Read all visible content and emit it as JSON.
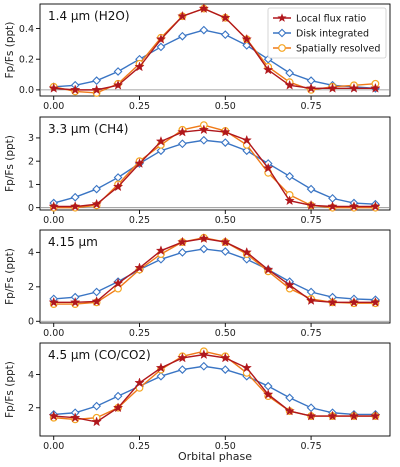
{
  "colors": {
    "local": "#b0171c",
    "disk": "#3a75c4",
    "spatial": "#f5a623",
    "spatial_line": "#f07a18",
    "axis": "#000000"
  },
  "chart_data": [
    {
      "type": "line",
      "title": "1.4 μm (H2O)",
      "ylabel": "Fp/Fs (ppt)",
      "xlabel": "",
      "xlim": [
        -0.04,
        0.98
      ],
      "ylim": [
        -0.04,
        0.56
      ],
      "xticks": [
        "0.00",
        "0.25",
        "0.50",
        "0.75"
      ],
      "xtick_values": [
        0,
        0.25,
        0.5,
        0.75
      ],
      "yticks": [
        "0.0",
        "0.2",
        "0.4"
      ],
      "ytick_values": [
        0,
        0.2,
        0.4
      ],
      "x": [
        0,
        0.0625,
        0.125,
        0.1875,
        0.25,
        0.3125,
        0.375,
        0.4375,
        0.5,
        0.5625,
        0.625,
        0.6875,
        0.75,
        0.8125,
        0.875,
        0.9375
      ],
      "series": [
        {
          "name": "Local flux ratio",
          "key": "local",
          "values": [
            0.01,
            0.0,
            0.0,
            0.03,
            0.15,
            0.33,
            0.48,
            0.53,
            0.47,
            0.33,
            0.13,
            0.03,
            0.01,
            0.01,
            0.01,
            0.01
          ]
        },
        {
          "name": "Disk integrated",
          "key": "disk",
          "values": [
            0.02,
            0.03,
            0.06,
            0.12,
            0.2,
            0.28,
            0.35,
            0.39,
            0.36,
            0.29,
            0.2,
            0.11,
            0.06,
            0.03,
            0.02,
            0.01
          ]
        },
        {
          "name": "Spatially resolved",
          "key": "spatial",
          "values": [
            0.02,
            -0.01,
            -0.02,
            0.04,
            0.17,
            0.34,
            0.48,
            0.53,
            0.47,
            0.33,
            0.15,
            0.05,
            0.0,
            0.02,
            0.03,
            0.04
          ]
        }
      ],
      "legend": "top-right"
    },
    {
      "type": "line",
      "title": "3.3 μm (CH4)",
      "ylabel": "Fp/Fs (ppt)",
      "xlabel": "",
      "xlim": [
        -0.04,
        0.98
      ],
      "ylim": [
        -0.1,
        3.9
      ],
      "xticks": [
        "0.00",
        "0.25",
        "0.50",
        "0.75"
      ],
      "xtick_values": [
        0,
        0.25,
        0.5,
        0.75
      ],
      "yticks": [
        "0",
        "1",
        "2",
        "3"
      ],
      "ytick_values": [
        0,
        1,
        2,
        3
      ],
      "x": [
        0,
        0.0625,
        0.125,
        0.1875,
        0.25,
        0.3125,
        0.375,
        0.4375,
        0.5,
        0.5625,
        0.625,
        0.6875,
        0.75,
        0.8125,
        0.875,
        0.9375
      ],
      "series": [
        {
          "name": "Local flux ratio",
          "key": "local",
          "values": [
            0.05,
            0.05,
            0.15,
            0.9,
            1.9,
            2.85,
            3.25,
            3.35,
            3.25,
            2.9,
            1.7,
            0.3,
            0.1,
            0.05,
            0.05,
            0.05
          ]
        },
        {
          "name": "Disk integrated",
          "key": "disk",
          "values": [
            0.2,
            0.45,
            0.8,
            1.3,
            1.9,
            2.45,
            2.75,
            2.9,
            2.8,
            2.45,
            1.9,
            1.35,
            0.8,
            0.4,
            0.2,
            0.15
          ]
        },
        {
          "name": "Spatially resolved",
          "key": "spatial",
          "values": [
            0.0,
            0.0,
            0.1,
            1.0,
            2.0,
            2.7,
            3.35,
            3.55,
            3.3,
            2.7,
            1.5,
            0.55,
            0.1,
            0.0,
            0.0,
            0.0
          ]
        }
      ]
    },
    {
      "type": "line",
      "title": "4.15 μm",
      "ylabel": "Fp/Fs (ppt)",
      "xlabel": "",
      "xlim": [
        -0.04,
        0.98
      ],
      "ylim": [
        -0.1,
        5.3
      ],
      "xticks": [
        "0.00",
        "0.25",
        "0.50",
        "0.75"
      ],
      "xtick_values": [
        0,
        0.25,
        0.5,
        0.75
      ],
      "yticks": [
        "0",
        "2",
        "4"
      ],
      "ytick_values": [
        0,
        2,
        4
      ],
      "x": [
        0,
        0.0625,
        0.125,
        0.1875,
        0.25,
        0.3125,
        0.375,
        0.4375,
        0.5,
        0.5625,
        0.625,
        0.6875,
        0.75,
        0.8125,
        0.875,
        0.9375
      ],
      "series": [
        {
          "name": "Local flux ratio",
          "key": "local",
          "values": [
            1.1,
            1.1,
            1.15,
            2.2,
            3.1,
            4.1,
            4.6,
            4.8,
            4.6,
            4.0,
            3.0,
            2.1,
            1.2,
            1.1,
            1.1,
            1.1
          ]
        },
        {
          "name": "Disk integrated",
          "key": "disk",
          "values": [
            1.3,
            1.4,
            1.7,
            2.3,
            3.0,
            3.6,
            4.0,
            4.2,
            4.05,
            3.6,
            3.0,
            2.3,
            1.7,
            1.4,
            1.3,
            1.25
          ]
        },
        {
          "name": "Spatially resolved",
          "key": "spatial",
          "values": [
            1.0,
            1.0,
            1.1,
            1.9,
            3.0,
            3.9,
            4.6,
            4.85,
            4.6,
            3.9,
            2.9,
            1.9,
            1.3,
            1.1,
            1.05,
            1.05
          ]
        }
      ]
    },
    {
      "type": "line",
      "title": "4.5 μm (CO/CO2)",
      "ylabel": "Fp/Fs (ppt)",
      "xlabel": "Orbital phase",
      "xlim": [
        -0.04,
        0.98
      ],
      "ylim": [
        0.3,
        5.9
      ],
      "xticks": [
        "0.00",
        "0.25",
        "0.50",
        "0.75"
      ],
      "xtick_values": [
        0,
        0.25,
        0.5,
        0.75
      ],
      "yticks": [
        "2",
        "4"
      ],
      "ytick_values": [
        2,
        4
      ],
      "x": [
        0,
        0.0625,
        0.125,
        0.1875,
        0.25,
        0.3125,
        0.375,
        0.4375,
        0.5,
        0.5625,
        0.625,
        0.6875,
        0.75,
        0.8125,
        0.875,
        0.9375
      ],
      "series": [
        {
          "name": "Local flux ratio",
          "key": "local",
          "values": [
            1.5,
            1.4,
            1.15,
            2.0,
            3.5,
            4.4,
            5.0,
            5.2,
            5.0,
            4.4,
            2.8,
            1.8,
            1.5,
            1.5,
            1.5,
            1.5
          ]
        },
        {
          "name": "Disk integrated",
          "key": "disk",
          "values": [
            1.6,
            1.7,
            2.1,
            2.7,
            3.3,
            3.9,
            4.3,
            4.5,
            4.3,
            3.9,
            3.3,
            2.6,
            2.0,
            1.7,
            1.6,
            1.6
          ]
        },
        {
          "name": "Spatially resolved",
          "key": "spatial",
          "values": [
            1.4,
            1.3,
            1.4,
            2.0,
            3.2,
            4.3,
            5.1,
            5.4,
            5.1,
            4.1,
            2.7,
            1.8,
            1.5,
            1.5,
            1.5,
            1.5
          ]
        }
      ]
    }
  ]
}
